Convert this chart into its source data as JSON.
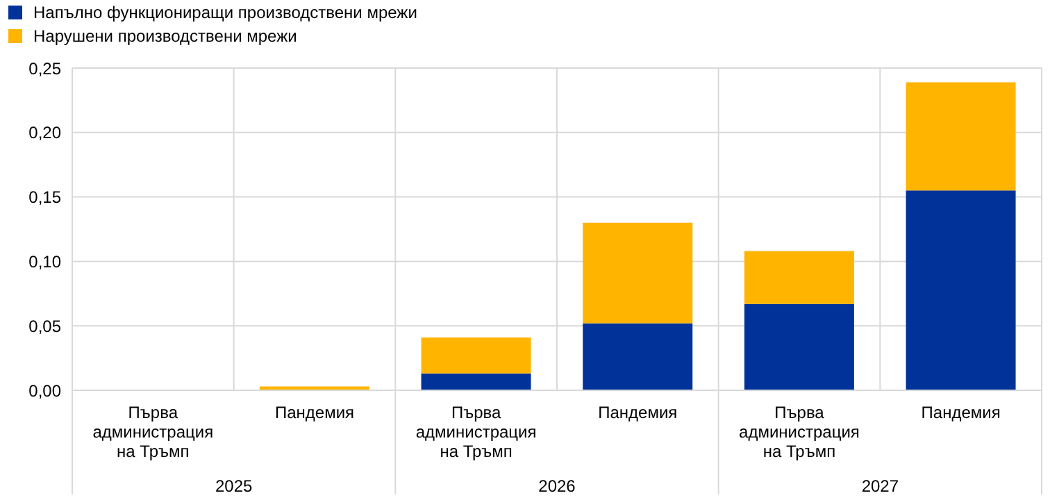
{
  "chart_data": {
    "type": "bar",
    "stacked": true,
    "categories": [
      "Първа администрация на Тръмп",
      "Пандемия",
      "Първа администрация на Тръмп",
      "Пандемия",
      "Първа администрация на Тръмп",
      "Пандемия"
    ],
    "series": [
      {
        "name": "Напълно функциониращи производствени мрежи",
        "color": "#003299",
        "values": [
          0,
          0,
          0.013,
          0.052,
          0.067,
          0.155
        ]
      },
      {
        "name": "Нарушени производствени мрежи",
        "color": "#ffb400",
        "values": [
          0,
          0.003,
          0.028,
          0.078,
          0.041,
          0.084
        ]
      }
    ],
    "ylim": [
      0,
      0.25
    ],
    "yticks": [
      {
        "value": 0,
        "label": "0,00"
      },
      {
        "value": 0.05,
        "label": "0,05"
      },
      {
        "value": 0.1,
        "label": "0,10"
      },
      {
        "value": 0.15,
        "label": "0,15"
      },
      {
        "value": 0.2,
        "label": "0,20"
      },
      {
        "value": 0.25,
        "label": "0,25"
      }
    ],
    "grid": true,
    "legend": "top left",
    "annotations": [
      "2025",
      "2026",
      "2027"
    ]
  }
}
